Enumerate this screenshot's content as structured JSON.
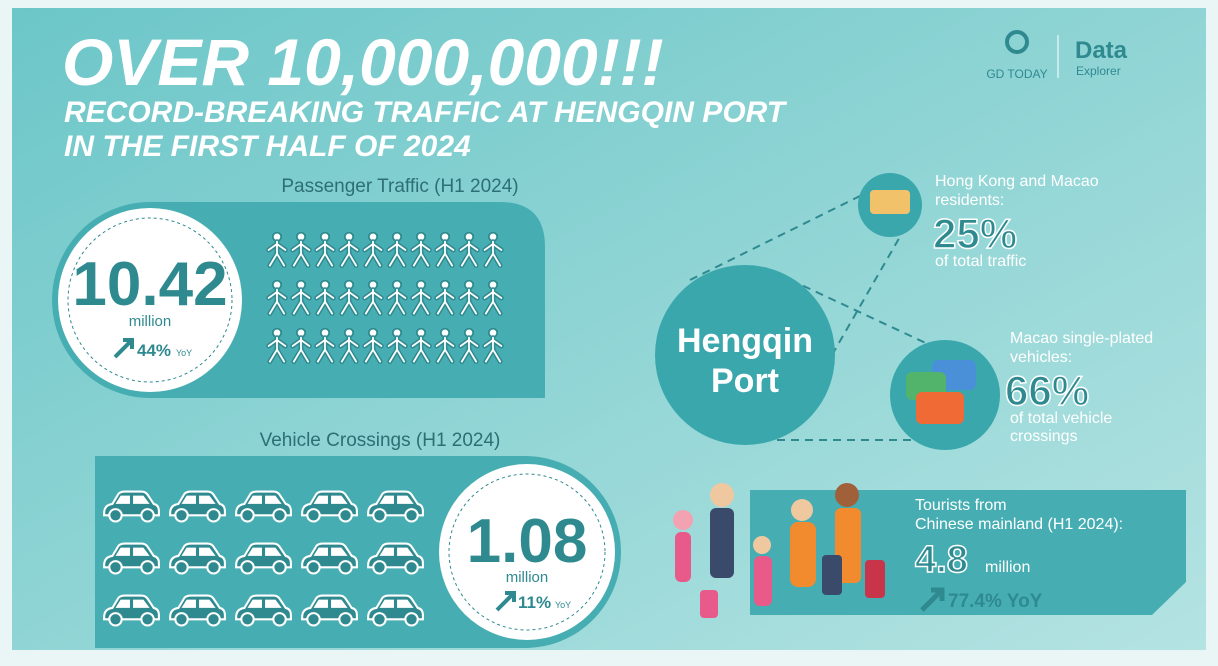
{
  "header": {
    "headline": "OVER 10,000,000!!!",
    "subheadline": [
      "RECORD-BREAKING TRAFFIC AT HENGQIN PORT",
      "IN THE FIRST HALF OF 2024"
    ]
  },
  "logos": {
    "gd": "GD TODAY",
    "data": "Data",
    "explorer": "Explorer"
  },
  "passenger": {
    "title": "Passenger Traffic (H1 2024)",
    "value": "10.42",
    "unit": "million",
    "change": "44%",
    "change_unit": "YoY"
  },
  "vehicle": {
    "title": "Vehicle Crossings (H1 2024)",
    "value": "1.08",
    "unit": "million",
    "change": "11%",
    "change_unit": "YoY"
  },
  "hub": {
    "label": [
      "Hengqin",
      "Port"
    ]
  },
  "residents": {
    "label": [
      "Hong Kong and Macao",
      "residents:"
    ],
    "value": "25%",
    "note": [
      "of total traffic"
    ]
  },
  "single_plated": {
    "label": [
      "Macao single-plated",
      "vehicles:"
    ],
    "value": "66%",
    "note": [
      "of total vehicle",
      "crossings"
    ]
  },
  "tourists": {
    "label": [
      "Tourists from",
      "Chinese mainland (H1 2024):"
    ],
    "value": "4.8",
    "unit": "million",
    "change": "77.4% YoY"
  }
}
